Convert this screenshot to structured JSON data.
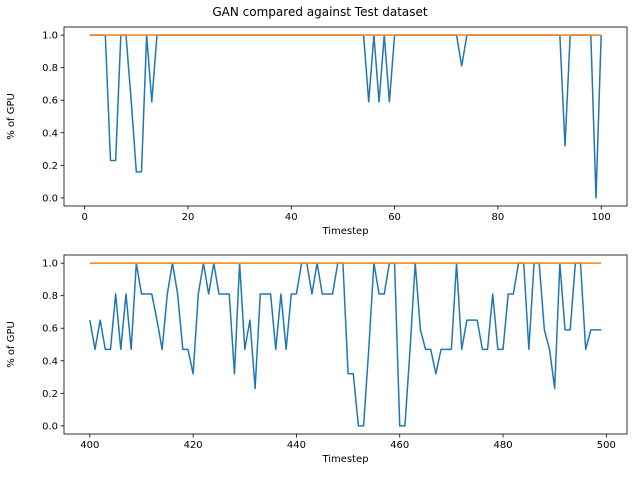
{
  "figure_title": "GAN compared against Test dataset",
  "chart_data": [
    {
      "type": "line",
      "xlabel": "Timestep",
      "ylabel": "% of GPU",
      "xlim": [
        -4,
        105
      ],
      "ylim": [
        -0.05,
        1.05
      ],
      "xticks": [
        0,
        20,
        40,
        60,
        80,
        100
      ],
      "yticks": [
        0.0,
        0.2,
        0.4,
        0.6,
        0.8,
        1.0
      ],
      "grid": false,
      "series": [
        {
          "color": "#1f77b4",
          "x": [
            1,
            2,
            3,
            4,
            5,
            6,
            7,
            8,
            9,
            10,
            11,
            12,
            13,
            14,
            15,
            16,
            17,
            18,
            19,
            20,
            21,
            22,
            23,
            24,
            25,
            26,
            27,
            28,
            29,
            30,
            31,
            32,
            33,
            34,
            35,
            36,
            37,
            38,
            39,
            40,
            41,
            42,
            43,
            44,
            45,
            46,
            47,
            48,
            49,
            50,
            51,
            52,
            53,
            54,
            55,
            56,
            57,
            58,
            59,
            60,
            61,
            62,
            63,
            64,
            65,
            66,
            67,
            68,
            69,
            70,
            71,
            72,
            73,
            74,
            75,
            76,
            77,
            78,
            79,
            80,
            81,
            82,
            83,
            84,
            85,
            86,
            87,
            88,
            89,
            90,
            91,
            92,
            93,
            94,
            95,
            96,
            97,
            98,
            99,
            100
          ],
          "values": [
            1,
            1,
            1,
            1,
            0.23,
            0.23,
            1,
            1,
            0.6,
            0.16,
            0.16,
            1,
            0.59,
            1,
            1,
            1,
            1,
            1,
            1,
            1,
            1,
            1,
            1,
            1,
            1,
            1,
            1,
            1,
            1,
            1,
            1,
            1,
            1,
            1,
            1,
            1,
            1,
            1,
            1,
            1,
            1,
            1,
            1,
            1,
            1,
            1,
            1,
            1,
            1,
            1,
            1,
            1,
            1,
            1,
            0.59,
            1,
            0.59,
            1,
            0.59,
            1,
            1,
            1,
            1,
            1,
            1,
            1,
            1,
            1,
            1,
            1,
            1,
            1,
            0.81,
            1,
            1,
            1,
            1,
            1,
            1,
            1,
            1,
            1,
            1,
            1,
            1,
            1,
            1,
            1,
            1,
            1,
            1,
            1,
            0.32,
            1,
            1,
            1,
            1,
            1,
            0,
            1
          ]
        },
        {
          "color": "#ff7f0e",
          "x": [
            1,
            100
          ],
          "values": [
            1,
            1
          ]
        }
      ]
    },
    {
      "type": "line",
      "xlabel": "Timestep",
      "ylabel": "% of GPU",
      "xlim": [
        395,
        504
      ],
      "ylim": [
        -0.05,
        1.05
      ],
      "xticks": [
        400,
        420,
        440,
        460,
        480,
        500
      ],
      "yticks": [
        0.0,
        0.2,
        0.4,
        0.6,
        0.8,
        1.0
      ],
      "grid": false,
      "series": [
        {
          "color": "#1f77b4",
          "x": [
            400,
            401,
            402,
            403,
            404,
            405,
            406,
            407,
            408,
            409,
            410,
            411,
            412,
            413,
            414,
            415,
            416,
            417,
            418,
            419,
            420,
            421,
            422,
            423,
            424,
            425,
            426,
            427,
            428,
            429,
            430,
            431,
            432,
            433,
            434,
            435,
            436,
            437,
            438,
            439,
            440,
            441,
            442,
            443,
            444,
            445,
            446,
            447,
            448,
            449,
            450,
            451,
            452,
            453,
            454,
            455,
            456,
            457,
            458,
            459,
            460,
            461,
            462,
            463,
            464,
            465,
            466,
            467,
            468,
            469,
            470,
            471,
            472,
            473,
            474,
            475,
            476,
            477,
            478,
            479,
            480,
            481,
            482,
            483,
            484,
            485,
            486,
            487,
            488,
            489,
            490,
            491,
            492,
            493,
            494,
            495,
            496,
            497,
            498,
            499
          ],
          "values": [
            0.65,
            0.47,
            0.65,
            0.47,
            0.47,
            0.81,
            0.47,
            0.81,
            0.47,
            1,
            0.81,
            0.81,
            0.81,
            0.65,
            0.47,
            0.81,
            1,
            0.81,
            0.47,
            0.47,
            0.32,
            0.81,
            1,
            0.81,
            1,
            0.81,
            0.81,
            0.81,
            0.32,
            1,
            0.47,
            0.65,
            0.23,
            0.81,
            0.81,
            0.81,
            0.47,
            0.81,
            0.47,
            0.81,
            0.81,
            1,
            1,
            0.81,
            1,
            0.81,
            0.81,
            0.81,
            1,
            1,
            0.32,
            0.32,
            0,
            0,
            0.47,
            1,
            0.81,
            0.81,
            1,
            1,
            0,
            0,
            0.47,
            1,
            0.59,
            0.47,
            0.47,
            0.32,
            0.47,
            0.47,
            0.47,
            1,
            0.47,
            0.65,
            0.65,
            0.65,
            0.47,
            0.47,
            0.81,
            0.47,
            0.47,
            0.81,
            0.81,
            1,
            1,
            0.47,
            1,
            1,
            0.59,
            0.47,
            0.23,
            1,
            0.59,
            0.59,
            1,
            1,
            0.47,
            0.59,
            0.59,
            0.59
          ]
        },
        {
          "color": "#ff7f0e",
          "x": [
            400,
            499
          ],
          "values": [
            1,
            1
          ]
        }
      ]
    }
  ]
}
